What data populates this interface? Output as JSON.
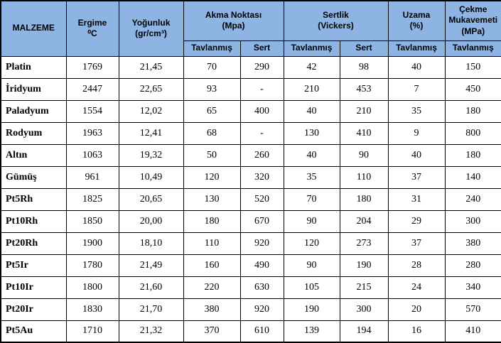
{
  "colors": {
    "header_bg": "#8DB4E2",
    "border": "#000000",
    "row_bg": "#FFFFFF",
    "text": "#000000"
  },
  "header": {
    "malzeme": "MALZEME",
    "ergime_line1": "Ergime",
    "ergime_line2": "⁰C",
    "yogunluk_line1": "Yoğunluk",
    "yogunluk_line2": "(gr/cm³)",
    "akma_line1": "Akma Noktası",
    "akma_line2": "(Mpa)",
    "sertlik_line1": "Sertlik",
    "sertlik_line2": "(Vickers)",
    "uzama_line1": "Uzama",
    "uzama_line2": "(%)",
    "cekme_line1": "Çekme",
    "cekme_line2": "Mukavemeti",
    "cekme_line3": "(MPa)",
    "sub": {
      "akma_tavlanmis": "Tavlanmış",
      "akma_sert": "Sert",
      "sertlik_tavlanmis": "Tavlanmış",
      "sertlik_sert": "Sert",
      "uzama_tavlanmis": "Tavlanmış",
      "cekme_tavlanmis": "Tavlanmış"
    }
  },
  "rows": [
    [
      "Platin",
      "1769",
      "21,45",
      "70",
      "290",
      "42",
      "98",
      "40",
      "150"
    ],
    [
      "İridyum",
      "2447",
      "22,65",
      "93",
      "-",
      "210",
      "453",
      "7",
      "450"
    ],
    [
      "Paladyum",
      "1554",
      "12,02",
      "65",
      "400",
      "40",
      "210",
      "35",
      "180"
    ],
    [
      "Rodyum",
      "1963",
      "12,41",
      "68",
      "-",
      "130",
      "410",
      "9",
      "800"
    ],
    [
      "Altın",
      "1063",
      "19,32",
      "50",
      "260",
      "40",
      "90",
      "40",
      "180"
    ],
    [
      "Gümüş",
      "961",
      "10,49",
      "120",
      "320",
      "35",
      "110",
      "37",
      "140"
    ],
    [
      "Pt5Rh",
      "1825",
      "20,65",
      "130",
      "520",
      "70",
      "180",
      "31",
      "240"
    ],
    [
      "Pt10Rh",
      "1850",
      "20,00",
      "180",
      "670",
      "90",
      "204",
      "29",
      "300"
    ],
    [
      "Pt20Rh",
      "1900",
      "18,10",
      "110",
      "920",
      "120",
      "273",
      "37",
      "380"
    ],
    [
      "Pt5Ir",
      "1780",
      "21,49",
      "160",
      "490",
      "90",
      "190",
      "28",
      "280"
    ],
    [
      "Pt10Ir",
      "1800",
      "21,60",
      "220",
      "630",
      "105",
      "215",
      "24",
      "340"
    ],
    [
      "Pt20Ir",
      "1830",
      "21,70",
      "380",
      "920",
      "190",
      "300",
      "20",
      "570"
    ],
    [
      "Pt5Au",
      "1710",
      "21,32",
      "370",
      "610",
      "139",
      "194",
      "16",
      "410"
    ]
  ]
}
